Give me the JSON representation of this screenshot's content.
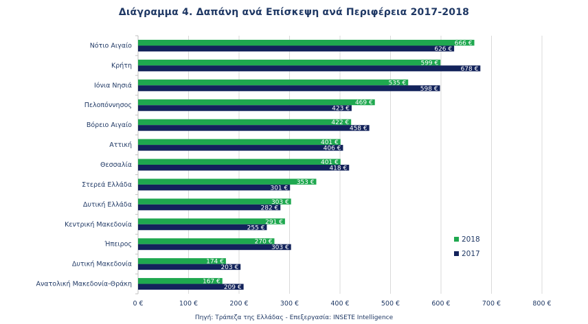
{
  "colors": {
    "series_2018": "#1fa84f",
    "series_2017": "#13235b",
    "grid": "#d9d9d9",
    "text": "#1f3864"
  },
  "chart_data": {
    "type": "bar",
    "orientation": "horizontal",
    "title": "Διάγραμμα 4. Δαπάνη ανά Επίσκεψη ανά Περιφέρεια 2017-2018",
    "source": "Πηγή: Τράπεζα της Ελλάδας - Επεξεργασία: INSETE Intelligence",
    "categories": [
      "Νότιο Αιγαίο",
      "Κρήτη",
      "Ιόνια Νησιά",
      "Πελοπόννησος",
      "Βόρειο Αιγαίο",
      "Αττική",
      "Θεσσαλία",
      "Στερεά Ελλάδα",
      "Δυτική Ελλάδα",
      "Κεντρική Μακεδονία",
      "Ήπειρος",
      "Δυτική Μακεδονία",
      "Ανατολική Μακεδονία-Θράκη"
    ],
    "series": [
      {
        "name": "2018",
        "values": [
          666,
          599,
          535,
          469,
          422,
          401,
          401,
          353,
          303,
          291,
          270,
          174,
          167
        ],
        "labels": [
          "666 €",
          "599 €",
          "535 €",
          "469 €",
          "422 €",
          "401 €",
          "401 €",
          "353 €",
          "303 €",
          "291 €",
          "270 €",
          "174 €",
          "167 €"
        ]
      },
      {
        "name": "2017",
        "values": [
          626,
          678,
          598,
          423,
          458,
          406,
          418,
          301,
          282,
          255,
          303,
          203,
          209
        ],
        "labels": [
          "626 €",
          "678 €",
          "598 €",
          "423 €",
          "458 €",
          "406 €",
          "418 €",
          "301 €",
          "282 €",
          "255 €",
          "303 €",
          "203 €",
          "209 €"
        ]
      }
    ],
    "xlim": [
      0,
      800
    ],
    "xticks": [
      "0 €",
      "100 €",
      "200 €",
      "300 €",
      "400 €",
      "500 €",
      "600 €",
      "700 €",
      "800 €"
    ],
    "grid": true,
    "legend_position": "bottom-right",
    "legend": [
      {
        "name": "2018"
      },
      {
        "name": "2017"
      }
    ]
  }
}
